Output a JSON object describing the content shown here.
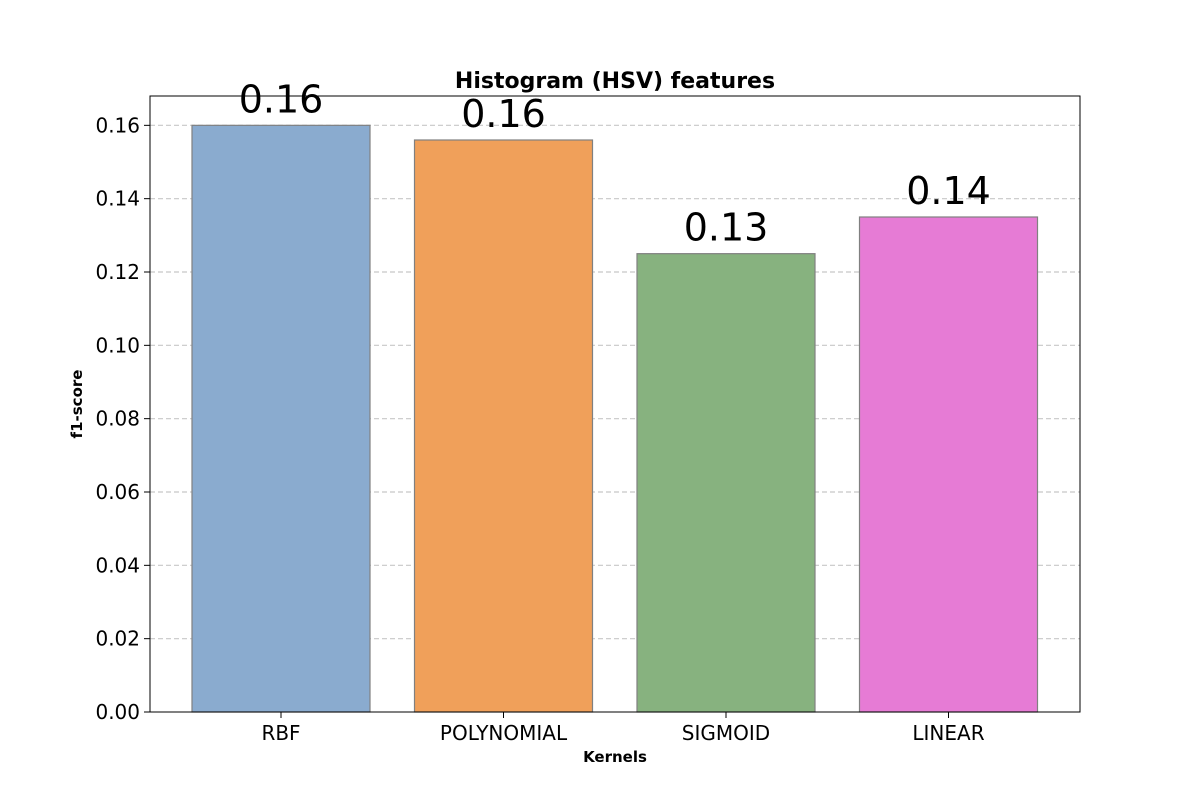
{
  "chart_data": {
    "type": "bar",
    "title": "Histogram (HSV) features",
    "xlabel": "Kernels",
    "ylabel": "f1-score",
    "categories": [
      "RBF",
      "POLYNOMIAL",
      "SIGMOID",
      "LINEAR"
    ],
    "values": [
      0.16,
      0.156,
      0.125,
      0.135
    ],
    "data_labels": [
      "0.16",
      "0.16",
      "0.13",
      "0.14"
    ],
    "bar_colors": [
      "#8aabcf",
      "#f0a05a",
      "#87b27f",
      "#e67bd5"
    ],
    "bar_edge_color": "#808080",
    "ylim": [
      0,
      0.168
    ],
    "yticks": [
      0.0,
      0.02,
      0.04,
      0.06,
      0.08,
      0.1,
      0.12,
      0.14,
      0.16
    ],
    "ytick_labels": [
      "0.00",
      "0.02",
      "0.04",
      "0.06",
      "0.08",
      "0.10",
      "0.12",
      "0.14",
      "0.16"
    ],
    "grid": {
      "axis": "y",
      "style": "dashed",
      "color": "#c8c8c8"
    },
    "legend": false
  }
}
